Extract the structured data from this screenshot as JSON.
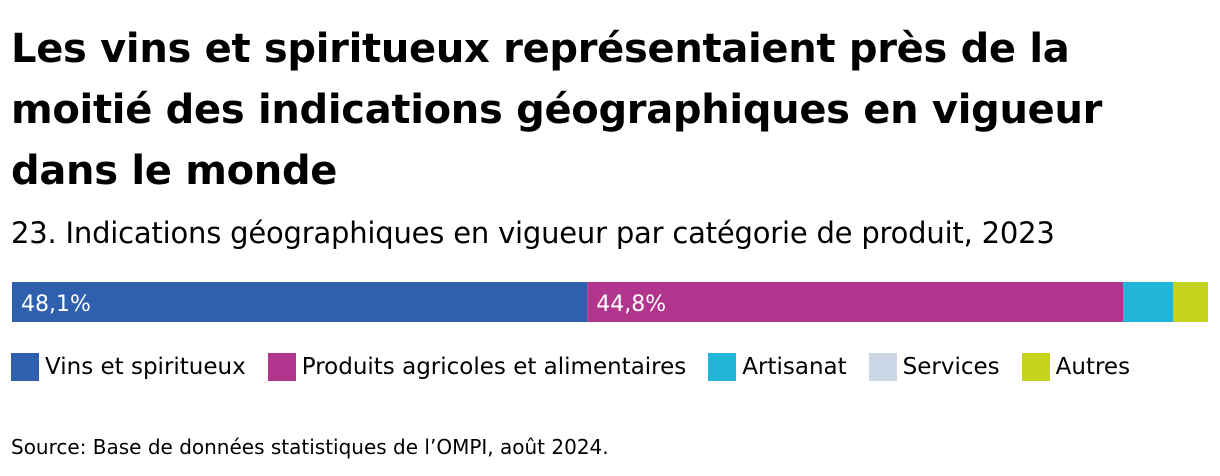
{
  "header": {
    "title": "Les vins et spiritueux représentaient près de la moitié des indications géographiques en vigueur dans le monde",
    "subtitle": "23. Indications géographiques en vigueur par catégorie de produit, 2023"
  },
  "chart_data": {
    "type": "bar",
    "orientation": "horizontal",
    "stacked": true,
    "percent": true,
    "title": "23. Indications géographiques en vigueur par catégorie de produit, 2023",
    "categories": [
      "2023"
    ],
    "series": [
      {
        "name": "Vins et spiritueux",
        "values": [
          48.1
        ],
        "color": "#2e60ae",
        "label": "48,1%"
      },
      {
        "name": "Produits agricoles et alimentaires",
        "values": [
          44.8
        ],
        "color": "#b1358c",
        "label": "44,8%"
      },
      {
        "name": "Artisanat",
        "values": [
          4.2
        ],
        "color": "#22b6d6",
        "label": ""
      },
      {
        "name": "Services",
        "values": [
          0.0
        ],
        "color": "#cbd6e6",
        "label": ""
      },
      {
        "name": "Autres",
        "values": [
          2.9
        ],
        "color": "#c5d31c",
        "label": ""
      }
    ],
    "xlim": [
      0,
      100
    ],
    "grid": false,
    "legend_position": "bottom"
  },
  "legend": {
    "items": [
      {
        "label": "Vins et spiritueux",
        "color": "#2e60ae"
      },
      {
        "label": "Produits agricoles et alimentaires",
        "color": "#b1358c"
      },
      {
        "label": "Artisanat",
        "color": "#22b6d6"
      },
      {
        "label": "Services",
        "color": "#cbd6e6"
      },
      {
        "label": "Autres",
        "color": "#c5d31c"
      }
    ]
  },
  "footer": {
    "source": "Source: Base de données statistiques de l’OMPI, août 2024."
  }
}
